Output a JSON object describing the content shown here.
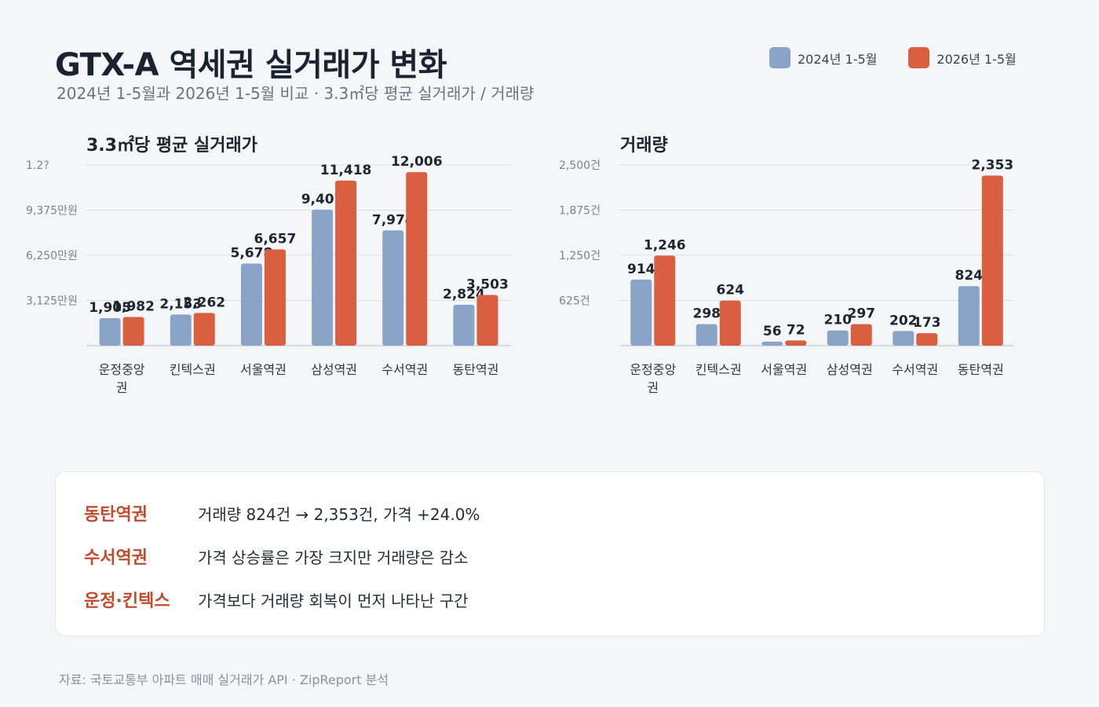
{
  "header": {
    "title": "GTX-A 역세권 실거래가 변화",
    "subtitle": "2024년 1-5월과 2026년 1-5월 비교 · 3.3㎡당 평균 실거래가 / 거래량"
  },
  "legend": [
    {
      "label": "2024년 1-5월",
      "color": "#8aa4c7"
    },
    {
      "label": "2026년 1-5월",
      "color": "#d95f40"
    }
  ],
  "colors": {
    "series_2024": "#8aa4c7",
    "series_2026": "#d95f40",
    "highlight": "#c44a2e"
  },
  "chart_data": [
    {
      "type": "bar",
      "title": "3.3㎡당 평균 실거래가",
      "categories": [
        "운정중앙권",
        "킨텍스권",
        "서울역권",
        "삼성역권",
        "수서역권",
        "동탄역권"
      ],
      "series": [
        {
          "name": "2024년 1-5월",
          "values": [
            1905,
            2153,
            5678,
            9407,
            7974,
            2824
          ]
        },
        {
          "name": "2026년 1-5월",
          "values": [
            1982,
            2262,
            6657,
            11418,
            12006,
            3503
          ]
        }
      ],
      "value_labels": {
        "2024년 1-5월": [
          "1,905",
          "2,153",
          "5,678",
          "9,407",
          "7,974",
          "2,824"
        ],
        "2026년 1-5월": [
          "1,982",
          "2,262",
          "6,657",
          "11,418",
          "12,006",
          "3,503"
        ]
      },
      "yticks": [
        "1.2?",
        "9,375만원",
        "6,250만원",
        "3,125만원"
      ],
      "ytick_values": [
        12500,
        9375,
        6250,
        3125
      ],
      "ylim": [
        0,
        12500
      ],
      "grid": true
    },
    {
      "type": "bar",
      "title": "거래량",
      "categories": [
        "운정중앙권",
        "킨텍스권",
        "서울역권",
        "삼성역권",
        "수서역권",
        "동탄역권"
      ],
      "series": [
        {
          "name": "2024년 1-5월",
          "values": [
            914,
            298,
            56,
            210,
            202,
            824
          ]
        },
        {
          "name": "2026년 1-5월",
          "values": [
            1246,
            624,
            72,
            297,
            173,
            2353
          ]
        }
      ],
      "value_labels": {
        "2024년 1-5월": [
          "914",
          "298",
          "56",
          "210",
          "202",
          "824"
        ],
        "2026년 1-5월": [
          "1,246",
          "624",
          "72",
          "297",
          "173",
          "2,353"
        ]
      },
      "yticks": [
        "2,500건",
        "1,875건",
        "1,250건",
        "625건"
      ],
      "ytick_values": [
        2500,
        1875,
        1250,
        625
      ],
      "ylim": [
        0,
        2500
      ],
      "grid": true
    }
  ],
  "notes": [
    {
      "head": "동탄역권",
      "text": "거래량 824건 → 2,353건, 가격 +24.0%"
    },
    {
      "head": "수서역권",
      "text": "가격 상승률은 가장 크지만 거래량은 감소"
    },
    {
      "head": "운정·킨텍스",
      "text": "가격보다 거래량 회복이 먼저 나타난 구간"
    }
  ],
  "source": "자료: 국토교통부 아파트 매매 실거래가 API · ZipReport 분석"
}
